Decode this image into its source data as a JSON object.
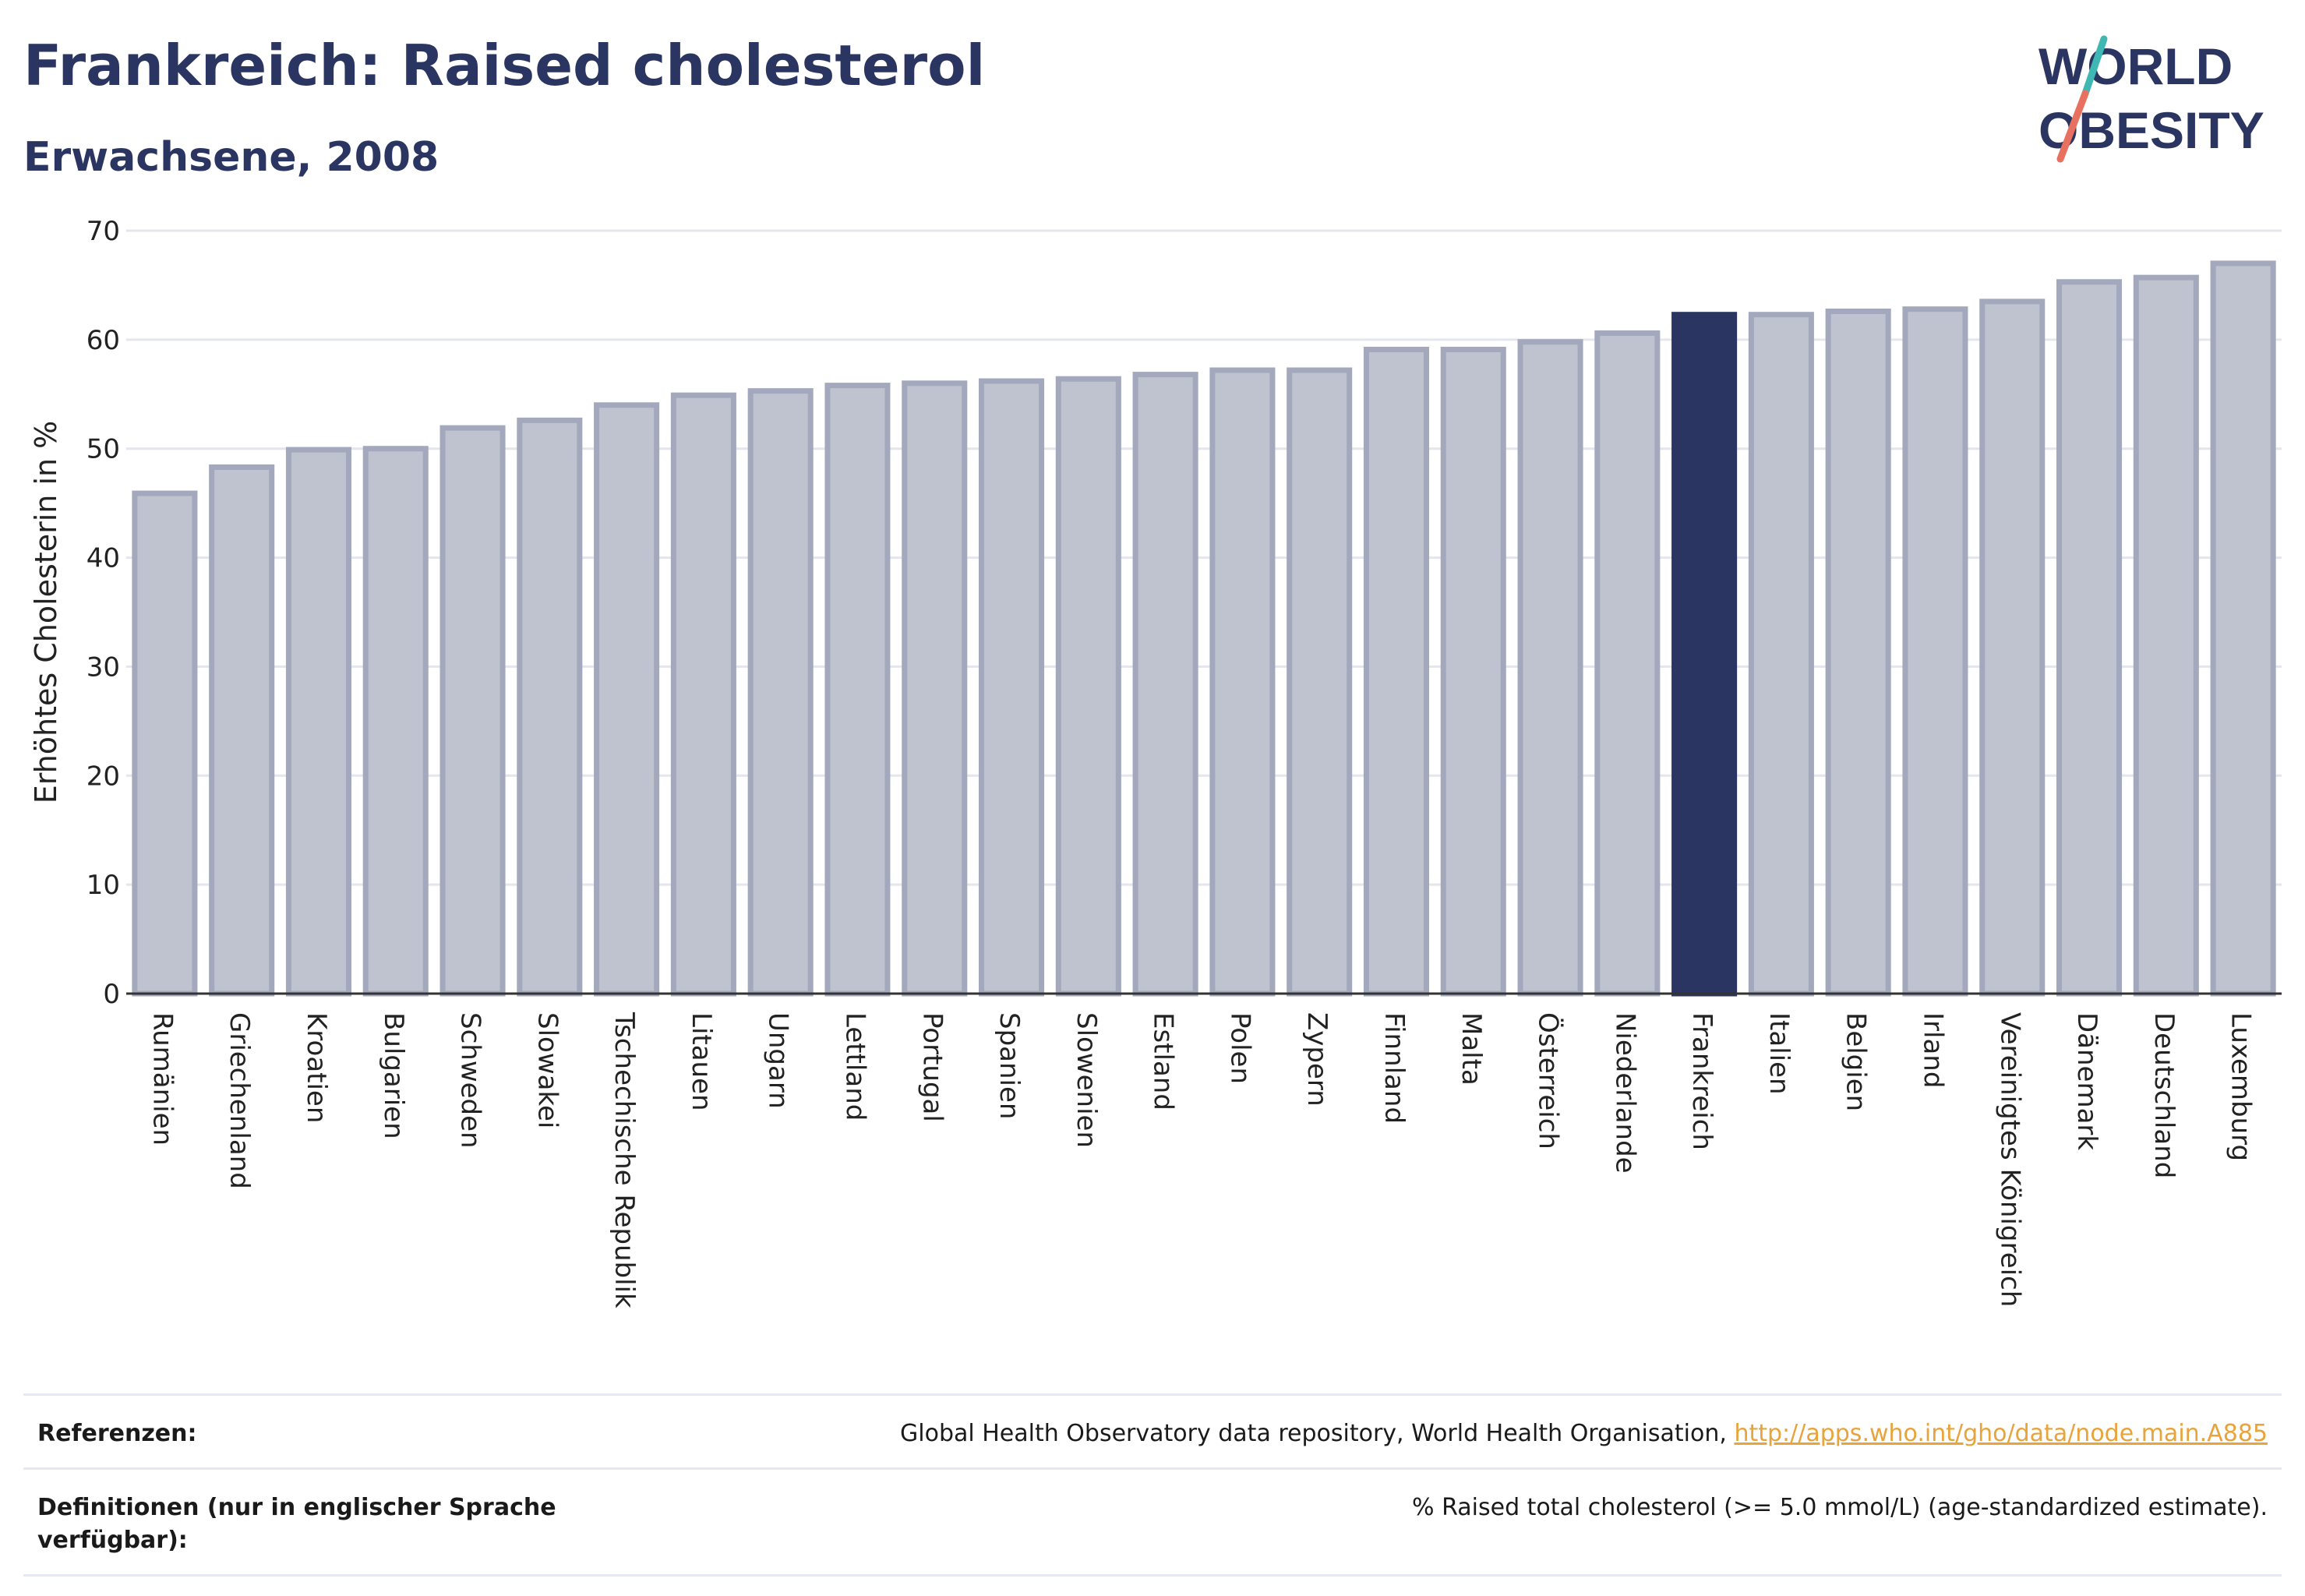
{
  "header": {
    "title": "Frankreich: Raised cholesterol",
    "subtitle": "Erwachsene, 2008"
  },
  "logo": {
    "line1": "WORLD",
    "line2": "OBESITY"
  },
  "colors": {
    "highlight": "#2b3561",
    "bar": "#bfc2cf",
    "bar_border": "#a3a8bc",
    "accent_teal": "#3fb8b4",
    "accent_coral": "#e8705f",
    "link": "#e8a33b"
  },
  "chart_data": {
    "type": "bar",
    "title": "Frankreich: Raised cholesterol",
    "subtitle": "Erwachsene, 2008",
    "ylabel": "Erhöhtes Cholesterin in %",
    "xlabel": "",
    "ylim": [
      0,
      70
    ],
    "yticks": [
      0,
      10,
      20,
      30,
      40,
      50,
      60,
      70
    ],
    "grid": true,
    "highlight": "Frankreich",
    "categories": [
      "Rumänien",
      "Griechenland",
      "Kroatien",
      "Bulgarien",
      "Schweden",
      "Slowakei",
      "Tschechische Republik",
      "Litauen",
      "Ungarn",
      "Lettland",
      "Portugal",
      "Spanien",
      "Slowenien",
      "Estland",
      "Polen",
      "Zypern",
      "Finnland",
      "Malta",
      "Österreich",
      "Niederlande",
      "Frankreich",
      "Italien",
      "Belgien",
      "Irland",
      "Vereinigtes Königreich",
      "Dänemark",
      "Deutschland",
      "Luxemburg"
    ],
    "values": [
      45.9,
      48.3,
      49.9,
      50.0,
      51.9,
      52.6,
      54.0,
      54.9,
      55.3,
      55.8,
      56.0,
      56.2,
      56.4,
      56.8,
      57.2,
      57.2,
      59.1,
      59.1,
      59.8,
      60.6,
      62.3,
      62.3,
      62.6,
      62.8,
      63.5,
      65.3,
      65.7,
      67.0
    ]
  },
  "footer": {
    "references_label": "Referenzen:",
    "references_text": "Global Health Observatory data repository, World Health Organisation, ",
    "references_link": "http://apps.who.int/gho/data/node.main.A885",
    "definitions_label": "Definitionen (nur in englischer Sprache verfügbar):",
    "definitions_text": "% Raised total cholesterol (>= 5.0 mmol/L) (age-standardized estimate)."
  }
}
